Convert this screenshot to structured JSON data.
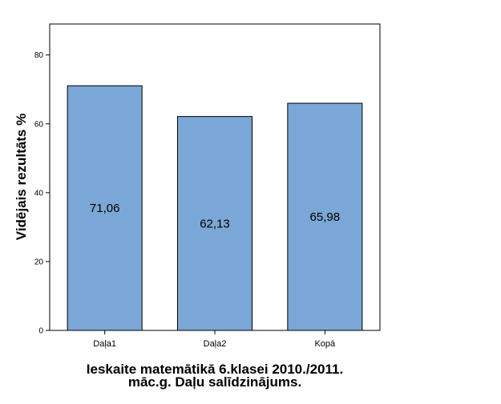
{
  "chart_data": {
    "type": "bar",
    "categories": [
      "Daļa1",
      "Daļa2",
      "Kopā"
    ],
    "values": [
      71.06,
      62.13,
      65.98
    ],
    "value_labels": [
      "71,06",
      "62,13",
      "65,98"
    ],
    "title": "",
    "xlabel": "Ieskaite matemātikā 6.klasei 2010./2011. māc.g. Daļu salīdzinājums.",
    "xlabel_lines": [
      "Ieskaite matemātikā 6.klasei 2010./2011.",
      "māc.g. Daļu salīdzinājums."
    ],
    "ylabel": "Vidējais rezultāts %",
    "ylim": [
      0,
      89
    ],
    "yticks": [
      0,
      20,
      40,
      60,
      80
    ],
    "grid": false,
    "legend": "none",
    "colors": {
      "bar_fill": "#7BA7D6",
      "bar_stroke": "#000000",
      "axis": "#000000"
    }
  }
}
